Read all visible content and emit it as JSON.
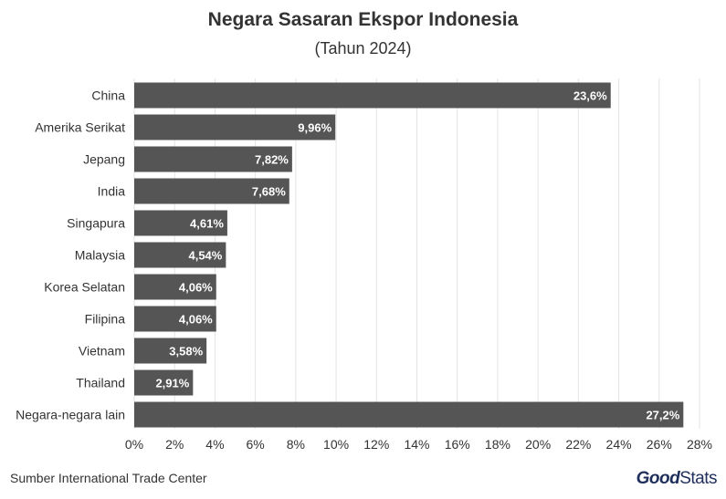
{
  "header": {
    "title": "Negara Sasaran Ekspor Indonesia",
    "subtitle": "(Tahun 2024)"
  },
  "footer": {
    "source": "Sumber International Trade Center",
    "logo_good": "Good",
    "logo_stats": "Stats"
  },
  "colors": {
    "bar": "#555555",
    "grid": "#e3e3e3",
    "text": "#333333",
    "logo": "#1f2f5c"
  },
  "chart_data": {
    "type": "bar",
    "orientation": "horizontal",
    "title": "Negara Sasaran Ekspor Indonesia",
    "subtitle": "(Tahun 2024)",
    "categories": [
      "China",
      "Amerika Serikat",
      "Jepang",
      "India",
      "Singapura",
      "Malaysia",
      "Korea Selatan",
      "Filipina",
      "Vietnam",
      "Thailand",
      "Negara-negara lain"
    ],
    "values": [
      23.6,
      9.96,
      7.82,
      7.68,
      4.61,
      4.54,
      4.06,
      4.06,
      3.58,
      2.91,
      27.2
    ],
    "value_labels": [
      "23,6%",
      "9,96%",
      "7,82%",
      "7,68%",
      "4,61%",
      "4,54%",
      "4,06%",
      "4,06%",
      "3,58%",
      "2,91%",
      "27,2%"
    ],
    "xlim": [
      0,
      28
    ],
    "x_ticks": [
      0,
      2,
      4,
      6,
      8,
      10,
      12,
      14,
      16,
      18,
      20,
      22,
      24,
      26,
      28
    ],
    "x_tick_labels": [
      "0%",
      "2%",
      "4%",
      "6%",
      "8%",
      "10%",
      "12%",
      "14%",
      "16%",
      "18%",
      "20%",
      "22%",
      "24%",
      "26%",
      "28%"
    ],
    "grid": true,
    "legend": "none"
  }
}
